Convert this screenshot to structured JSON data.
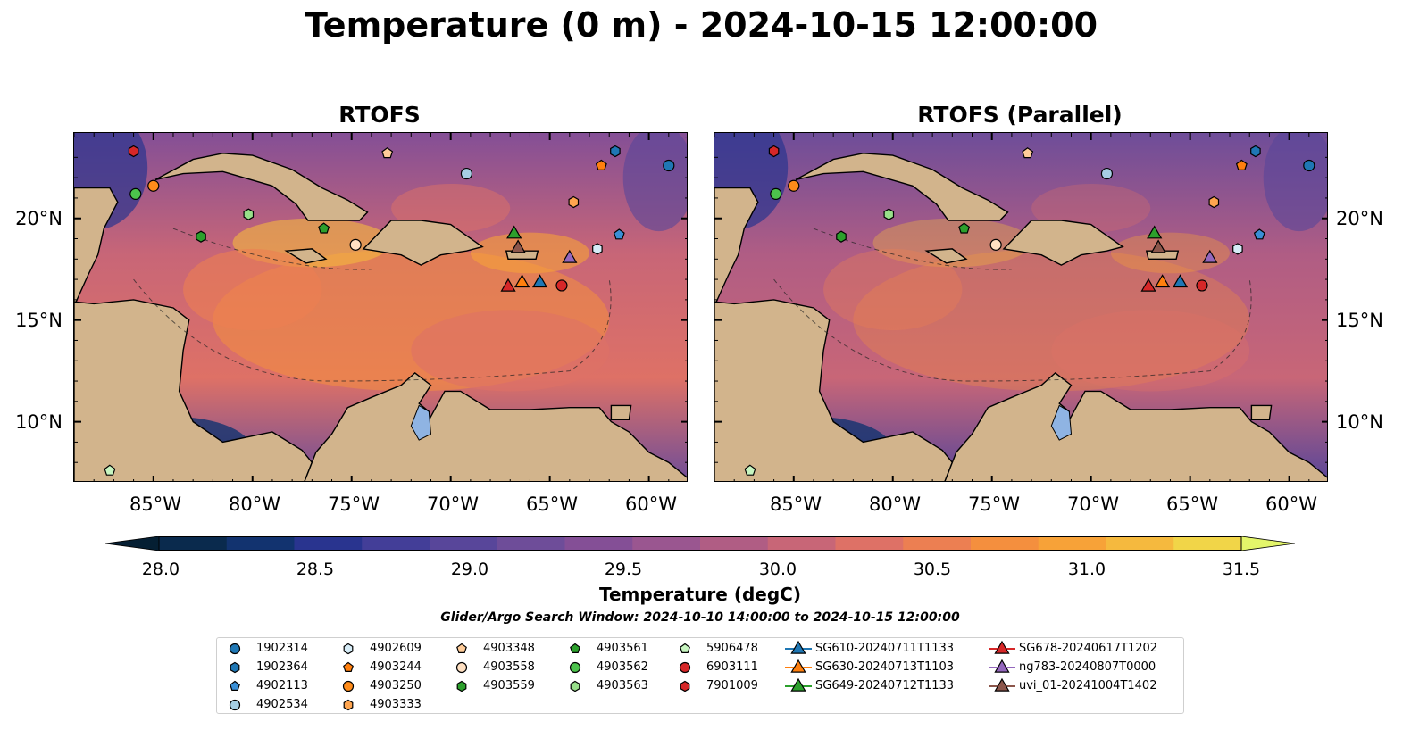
{
  "title": "Temperature (0 m) - 2024-10-15 12:00:00",
  "panels": [
    {
      "title": "RTOFS"
    },
    {
      "title": "RTOFS (Parallel)"
    }
  ],
  "lon_labels": [
    "85°W",
    "80°W",
    "75°W",
    "70°W",
    "65°W",
    "60°W"
  ],
  "lat_labels": [
    "20°N",
    "15°N",
    "10°N"
  ],
  "colorbar": {
    "label": "Temperature (degC)",
    "ticks": [
      "28.0",
      "28.5",
      "29.0",
      "29.5",
      "30.0",
      "30.5",
      "31.0",
      "31.5"
    ],
    "colors": [
      "#0a2a4d",
      "#12336f",
      "#29348f",
      "#433e98",
      "#58469a",
      "#6e4d99",
      "#844f96",
      "#9a5690",
      "#b05d84",
      "#c86677",
      "#de7166",
      "#ec7f52",
      "#f48f3e",
      "#f7a238",
      "#f5b93e",
      "#f1d548"
    ],
    "extend_low_color": "#051f33",
    "extend_high_color": "#e3f56a"
  },
  "search_window": "Glider/Argo Search Window: 2024-10-10 14:00:00 to 2024-10-15 12:00:00",
  "legend": {
    "items": [
      {
        "label": "1902314",
        "marker": "circle",
        "color": "#1f77b4"
      },
      {
        "label": "1902364",
        "marker": "hexagon",
        "color": "#1f77b4"
      },
      {
        "label": "4902113",
        "marker": "pentagon",
        "color": "#3a8fd6"
      },
      {
        "label": "4902534",
        "marker": "circle",
        "color": "#a6cee3"
      },
      {
        "label": "4902609",
        "marker": "hexagon",
        "color": "#d6ecf7"
      },
      {
        "label": "4903244",
        "marker": "pentagon",
        "color": "#ff7f0e"
      },
      {
        "label": "4903250",
        "marker": "circle",
        "color": "#ff8c1a"
      },
      {
        "label": "4903333",
        "marker": "hexagon",
        "color": "#ffa54f"
      },
      {
        "label": "4903348",
        "marker": "pentagon",
        "color": "#ffcc99"
      },
      {
        "label": "4903558",
        "marker": "circle",
        "color": "#ffe0c2"
      },
      {
        "label": "4903559",
        "marker": "hexagon",
        "color": "#2ca02c"
      },
      {
        "label": "4903561",
        "marker": "pentagon",
        "color": "#2ca02c"
      },
      {
        "label": "4903562",
        "marker": "circle",
        "color": "#4cc24c"
      },
      {
        "label": "4903563",
        "marker": "hexagon",
        "color": "#98df8a"
      },
      {
        "label": "5906478",
        "marker": "pentagon",
        "color": "#c7f5c0"
      },
      {
        "label": "6903111",
        "marker": "circle",
        "color": "#d62728"
      },
      {
        "label": "7901009",
        "marker": "hexagon",
        "color": "#d62728"
      },
      {
        "label": "SG610-20240711T1133",
        "marker": "triangle",
        "color": "#1f77b4"
      },
      {
        "label": "SG630-20240713T1103",
        "marker": "triangle",
        "color": "#ff7f0e"
      },
      {
        "label": "SG649-20240712T1133",
        "marker": "triangle",
        "color": "#2ca02c"
      },
      {
        "label": "SG678-20240617T1202",
        "marker": "triangle",
        "color": "#d62728"
      },
      {
        "label": "ng783-20240807T0000",
        "marker": "triangle",
        "color": "#9467bd"
      },
      {
        "label": "uvi_01-20241004T1402",
        "marker": "triangle",
        "color": "#8c564b"
      }
    ]
  },
  "platforms": [
    {
      "id": "1902314",
      "lon": -59.0,
      "lat": 22.6
    },
    {
      "id": "1902364",
      "lon": -61.7,
      "lat": 23.3
    },
    {
      "id": "4902113",
      "lon": -61.5,
      "lat": 19.2
    },
    {
      "id": "4902534",
      "lon": -69.2,
      "lat": 22.2
    },
    {
      "id": "4902609",
      "lon": -62.6,
      "lat": 18.5
    },
    {
      "id": "4903244",
      "lon": -62.4,
      "lat": 22.6
    },
    {
      "id": "4903250",
      "lon": -85.0,
      "lat": 21.6
    },
    {
      "id": "4903333",
      "lon": -63.8,
      "lat": 20.8
    },
    {
      "id": "4903348",
      "lon": -73.2,
      "lat": 23.2
    },
    {
      "id": "4903558",
      "lon": -74.8,
      "lat": 18.7
    },
    {
      "id": "4903559",
      "lon": -82.6,
      "lat": 19.1
    },
    {
      "id": "4903561",
      "lon": -76.4,
      "lat": 19.5
    },
    {
      "id": "4903562",
      "lon": -85.9,
      "lat": 21.2
    },
    {
      "id": "4903563",
      "lon": -80.2,
      "lat": 20.2
    },
    {
      "id": "5906478",
      "lon": -87.2,
      "lat": 7.6
    },
    {
      "id": "6903111",
      "lon": -64.4,
      "lat": 16.7
    },
    {
      "id": "7901009",
      "lon": -86.0,
      "lat": 23.3
    },
    {
      "id": "SG610-20240711T1133",
      "lon": -65.5,
      "lat": 16.9
    },
    {
      "id": "SG630-20240713T1103",
      "lon": -66.4,
      "lat": 16.9
    },
    {
      "id": "SG649-20240712T1133",
      "lon": -66.8,
      "lat": 19.3
    },
    {
      "id": "SG678-20240617T1202",
      "lon": -67.1,
      "lat": 16.7
    },
    {
      "id": "ng783-20240807T0000",
      "lon": -64.0,
      "lat": 18.1
    },
    {
      "id": "uvi_01-20241004T1402",
      "lon": -66.6,
      "lat": 18.6
    }
  ]
}
